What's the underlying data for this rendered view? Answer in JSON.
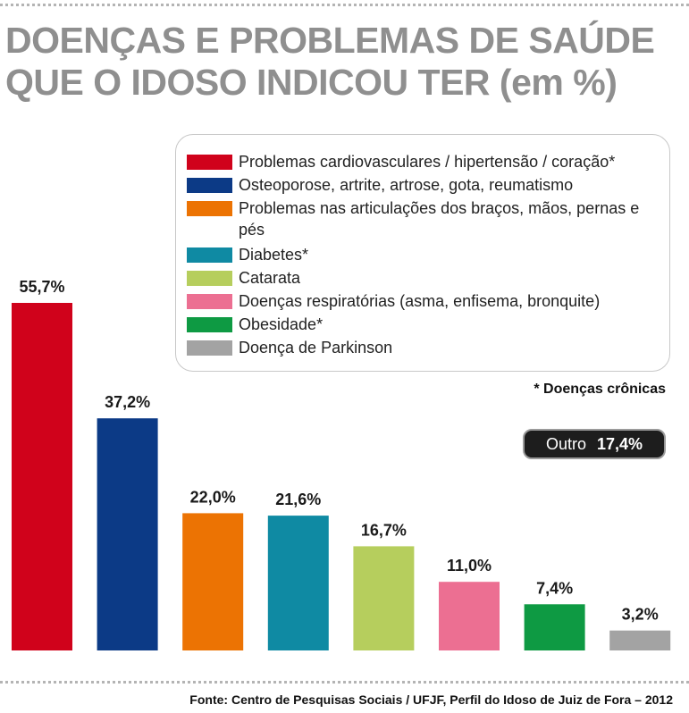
{
  "title": {
    "line1": "DOENÇAS E PROBLEMAS DE SAÚDE",
    "line2": "QUE O IDOSO INDICOU TER (em %)"
  },
  "note": "* Doenças crônicas",
  "outro": {
    "label": "Outro",
    "value": "17,4%"
  },
  "source": "Fonte: Centro de Pesquisas Sociais / UFJF, Perfil do Idoso de Juiz de Fora – 2012",
  "chart_data": {
    "type": "bar",
    "categories": [
      "Problemas cardiovasculares / hipertensão / coração*",
      "Osteoporose, artrite, artrose, gota, reumatismo",
      "Problemas nas articulações dos braços, mãos, pernas e pés",
      "Diabetes*",
      "Catarata",
      "Doenças respiratórias (asma, enfisema, bronquite)",
      "Obesidade*",
      "Doença de Parkinson"
    ],
    "values": [
      55.7,
      37.2,
      22.0,
      21.6,
      16.7,
      11.0,
      7.4,
      3.2
    ],
    "data_labels": [
      "55,7%",
      "37,2%",
      "22,0%",
      "21,6%",
      "16,7%",
      "11,0%",
      "7,4%",
      "3,2%"
    ],
    "colors": [
      "#d0021b",
      "#0c3a86",
      "#ec7303",
      "#0f8aa3",
      "#b6ce5d",
      "#ec6f92",
      "#0e9a43",
      "#a3a3a3"
    ],
    "ylim": [
      0,
      55.7
    ],
    "legend_position": "top-right",
    "legend": [
      {
        "label": "Problemas cardiovasculares / hipertensão / coração*",
        "color": "#d0021b"
      },
      {
        "label": "Osteoporose, artrite, artrose, gota, reumatismo",
        "color": "#0c3a86"
      },
      {
        "label": "Problemas nas articulações dos braços, mãos, pernas e pés",
        "color": "#ec7303"
      },
      {
        "label": "Diabetes*",
        "color": "#0f8aa3"
      },
      {
        "label": "Catarata",
        "color": "#b6ce5d"
      },
      {
        "label": "Doenças respiratórias (asma, enfisema, bronquite)",
        "color": "#ec6f92"
      },
      {
        "label": "Obesidade*",
        "color": "#0e9a43"
      },
      {
        "label": "Doença de Parkinson",
        "color": "#a3a3a3"
      }
    ],
    "grid": false
  }
}
